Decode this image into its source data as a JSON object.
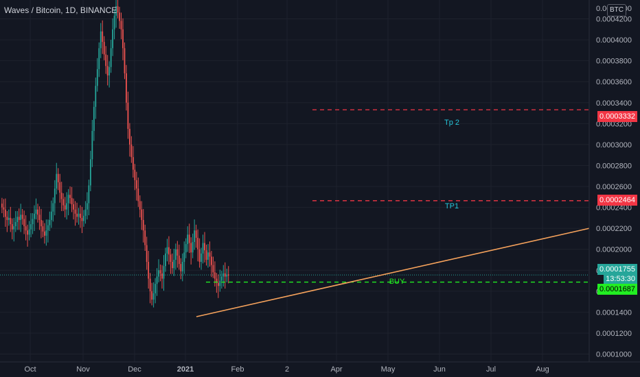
{
  "chart_title": "Waves / Bitcoin, 1D, BINANCE",
  "currency_badge": "BTC",
  "colors": {
    "background": "#131722",
    "grid": "#1e222d",
    "up": "#26a69a",
    "down": "#ef5350",
    "target_line": "#f23645",
    "buy_line": "#22ee22",
    "trendline": "#f7a35c"
  },
  "y_axis": {
    "ticks": [
      "0.0004200",
      "0.0004000",
      "0.0003800",
      "0.0003600",
      "0.0003400",
      "0.0003200",
      "0.0003000",
      "0.0002800",
      "0.0002600",
      "0.0002400",
      "0.0002200",
      "0.0002000",
      "0.0001800",
      "0.0001600",
      "0.0001400",
      "0.0001200",
      "0.0001000"
    ],
    "top_partial": "0.0004300"
  },
  "x_axis": {
    "ticks": [
      "Oct",
      "Nov",
      "Dec",
      "2021",
      "Feb",
      "2",
      "Apr",
      "May",
      "Jun",
      "Jul",
      "Aug"
    ]
  },
  "price_tags": {
    "tp2": "0.0003332",
    "tp1": "0.0002464",
    "last": "0.0001755",
    "countdown": "13:53:30",
    "buy": "0.0001687"
  },
  "annotations": {
    "tp2": "Tp 2",
    "tp1": "TP1",
    "buy": "BUY"
  },
  "chart_data": {
    "type": "candlestick",
    "symbol": "Waves / Bitcoin",
    "interval": "1D",
    "exchange": "BINANCE",
    "x_labels": [
      "Oct",
      "Nov",
      "Dec",
      "2021",
      "Feb",
      "2",
      "Apr",
      "May",
      "Jun",
      "Jul",
      "Aug"
    ],
    "ylim": [
      9.25e-05,
      0.000438
    ],
    "close_series": [
      0.00024,
      0.000238,
      0.000231,
      0.000228,
      0.00023,
      0.000224,
      0.000219,
      0.000222,
      0.000226,
      0.000231,
      0.000228,
      0.000233,
      0.000229,
      0.000222,
      0.000218,
      0.000214,
      0.000219,
      0.000224,
      0.000229,
      0.000234,
      0.000238,
      0.000233,
      0.000228,
      0.000222,
      0.000217,
      0.000213,
      0.000218,
      0.000223,
      0.000228,
      0.000236,
      0.000244,
      0.000258,
      0.000272,
      0.000264,
      0.000254,
      0.000248,
      0.000242,
      0.000238,
      0.000244,
      0.000252,
      0.000249,
      0.000243,
      0.000238,
      0.000234,
      0.000231,
      0.000234,
      0.00023,
      0.000227,
      0.000232,
      0.000238,
      0.000244,
      0.000261,
      0.000286,
      0.000313,
      0.000336,
      0.000356,
      0.000372,
      0.000392,
      0.000408,
      0.000398,
      0.000386,
      0.000375,
      0.000366,
      0.000374,
      0.000392,
      0.00041,
      0.000423,
      0.000432,
      0.000426,
      0.000418,
      0.00041,
      0.000392,
      0.000368,
      0.00034,
      0.000315,
      0.0003,
      0.000288,
      0.000276,
      0.000266,
      0.000258,
      0.000246,
      0.000238,
      0.000228,
      0.000218,
      0.000204,
      0.000188,
      0.000172,
      0.00016,
      0.000152,
      0.000158,
      0.000167,
      0.000174,
      0.00018,
      0.000177,
      0.000172,
      0.000184,
      0.000196,
      0.000202,
      0.000195,
      0.000188,
      0.000182,
      0.00019,
      0.0002,
      0.000194,
      0.000186,
      0.000179,
      0.000188,
      0.000197,
      0.000205,
      0.000214,
      0.000206,
      0.000197,
      0.000207,
      0.000218,
      0.000211,
      0.0002,
      0.000188,
      0.000196,
      0.000206,
      0.000199,
      0.00019,
      0.000197,
      0.000193,
      0.000185,
      0.000178,
      0.000172,
      0.000168,
      0.000165,
      0.00017,
      0.000174,
      0.000177,
      0.000174,
      0.000176,
      0.000175
    ],
    "levels": [
      {
        "name": "Tp 2",
        "price": 0.0003332
      },
      {
        "name": "TP1",
        "price": 0.0002464
      },
      {
        "name": "BUY",
        "price": 0.0001687
      }
    ],
    "last_price": 0.0001755,
    "trendline": {
      "start": {
        "price": 0.0001357
      },
      "end": {
        "price": 0.00022
      }
    }
  }
}
